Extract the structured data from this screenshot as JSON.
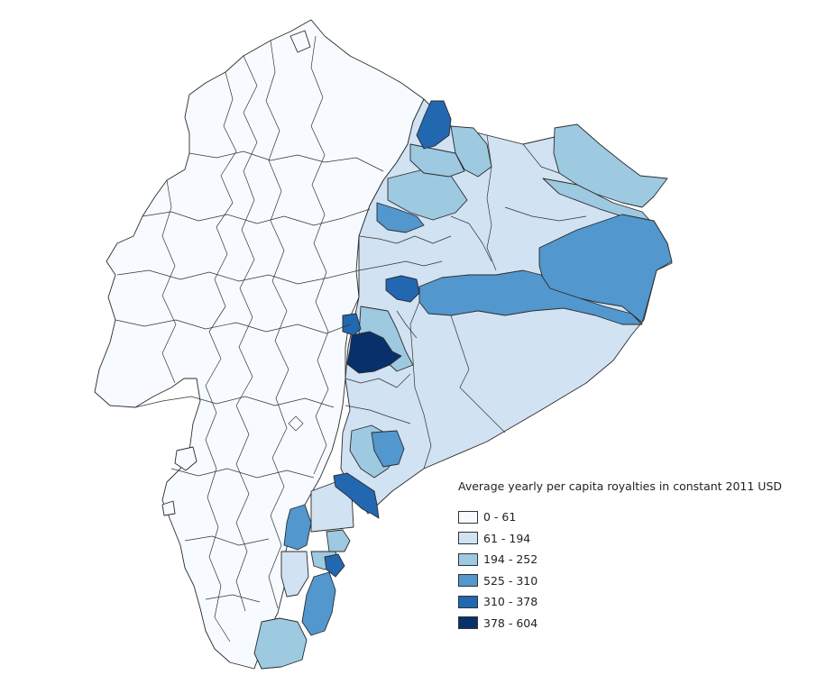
{
  "legend": {
    "title": "Average yearly per capita royalties in constant 2011 USD",
    "classes": [
      {
        "label": "0 - 61",
        "color": "#f7fbff"
      },
      {
        "label": "61 - 194",
        "color": "#d1e2f2"
      },
      {
        "label": "194 - 252",
        "color": "#9dc9e1"
      },
      {
        "label": "525 - 310",
        "color": "#5297cd"
      },
      {
        "label": "310 - 378",
        "color": "#2268b1"
      },
      {
        "label": "378 - 604",
        "color": "#08306b"
      }
    ]
  },
  "palette": {
    "stroke": "#2b2b2b",
    "background": "#ffffff"
  }
}
